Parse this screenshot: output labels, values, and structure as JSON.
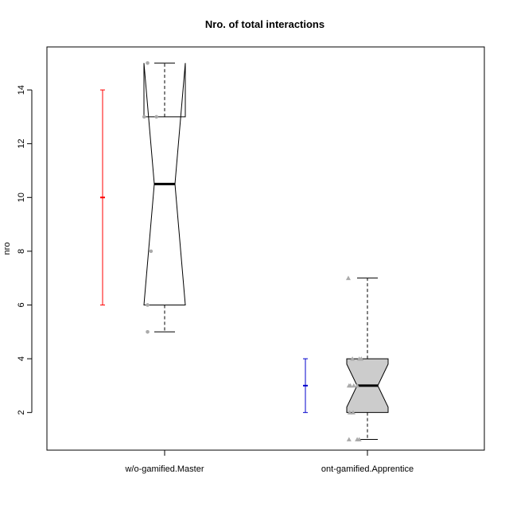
{
  "chart_data": {
    "type": "box",
    "title": "Nro. of total interactions",
    "ylabel": "nro",
    "xlabel": "",
    "ylim": [
      0.6,
      15.6
    ],
    "yticks": [
      2,
      4,
      6,
      8,
      10,
      12,
      14
    ],
    "notched": true,
    "groups": [
      {
        "label": "w/o-gamified.Master",
        "box_fill": "#ffffff",
        "whisker_low": 5,
        "q1": 6,
        "median": 10.5,
        "q3": 13,
        "whisker_high": 15,
        "notch_low": 6,
        "notch_high": 15,
        "points_marker": "circle",
        "points": [
          {
            "x": -0.25,
            "y": 15
          },
          {
            "x": -0.3,
            "y": 13
          },
          {
            "x": -0.12,
            "y": 13
          },
          {
            "x": -0.2,
            "y": 8
          },
          {
            "x": -0.25,
            "y": 6
          },
          {
            "x": -0.25,
            "y": 5
          }
        ],
        "errorbar": {
          "color": "#ff0000",
          "low": 6,
          "mean": 10,
          "high": 14
        }
      },
      {
        "label": "ont-gamified.Apprentice",
        "box_fill": "#cccccc",
        "whisker_low": 1,
        "q1": 2,
        "median": 3,
        "q3": 4,
        "whisker_high": 7,
        "notch_low": 2.2,
        "notch_high": 3.8,
        "points_marker": "triangle",
        "points": [
          {
            "x": -0.28,
            "y": 7
          },
          {
            "x": -0.22,
            "y": 4
          },
          {
            "x": -0.12,
            "y": 4
          },
          {
            "x": -0.09,
            "y": 4
          },
          {
            "x": -0.27,
            "y": 3
          },
          {
            "x": -0.25,
            "y": 3
          },
          {
            "x": -0.2,
            "y": 3
          },
          {
            "x": -0.15,
            "y": 3
          },
          {
            "x": -0.26,
            "y": 2
          },
          {
            "x": -0.21,
            "y": 2
          },
          {
            "x": -0.27,
            "y": 1
          },
          {
            "x": -0.15,
            "y": 1
          },
          {
            "x": -0.12,
            "y": 1
          }
        ],
        "errorbar": {
          "color": "#0000cc",
          "low": 2,
          "mean": 3,
          "high": 4
        }
      }
    ]
  }
}
